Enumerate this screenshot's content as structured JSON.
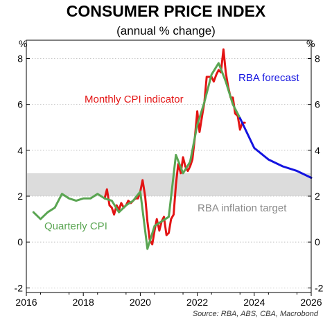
{
  "chart_data": {
    "type": "line",
    "title": "CONSUMER PRICE INDEX",
    "subtitle": "(annual % change)",
    "unit_left": "%",
    "unit_right": "%",
    "source": "Source: RBA, ABS, CBA, Macrobond",
    "xlim": [
      2016,
      2026
    ],
    "ylim": [
      -2.2,
      8.8
    ],
    "x_ticks": [
      2016,
      2018,
      2020,
      2022,
      2024,
      2026
    ],
    "y_ticks": [
      -2,
      0,
      2,
      4,
      6,
      8
    ],
    "grid": "horizontal-dotted",
    "target_band": {
      "label": "RBA inflation target",
      "low": 2,
      "high": 3,
      "color": "#dcdcdc",
      "label_color": "#8a8a8a"
    },
    "series": [
      {
        "name": "Monthly CPI indicator",
        "color": "#e31414",
        "x": [
          2018.75,
          2018.83,
          2018.92,
          2019.0,
          2019.08,
          2019.17,
          2019.25,
          2019.33,
          2019.42,
          2019.5,
          2019.58,
          2019.67,
          2019.75,
          2019.83,
          2019.92,
          2020.0,
          2020.08,
          2020.17,
          2020.25,
          2020.33,
          2020.42,
          2020.5,
          2020.58,
          2020.67,
          2020.75,
          2020.83,
          2020.92,
          2021.0,
          2021.08,
          2021.17,
          2021.25,
          2021.33,
          2021.42,
          2021.5,
          2021.58,
          2021.67,
          2021.75,
          2021.83,
          2021.92,
          2022.0,
          2022.08,
          2022.17,
          2022.25,
          2022.33,
          2022.42,
          2022.5,
          2022.58,
          2022.67,
          2022.75,
          2022.83,
          2022.92,
          2023.0,
          2023.08,
          2023.17,
          2023.25,
          2023.33,
          2023.42,
          2023.5,
          2023.58,
          2023.67
        ],
        "values": [
          1.9,
          2.3,
          1.6,
          1.5,
          1.2,
          1.6,
          1.4,
          1.7,
          1.5,
          1.6,
          1.8,
          1.7,
          1.8,
          1.9,
          1.9,
          2.2,
          2.7,
          2.0,
          0.9,
          0.1,
          -0.1,
          0.5,
          1.0,
          0.5,
          0.9,
          1.1,
          0.3,
          0.4,
          1.0,
          1.2,
          2.5,
          3.4,
          3.0,
          3.7,
          3.3,
          3.1,
          3.3,
          3.6,
          4.6,
          5.7,
          4.8,
          5.5,
          6.1,
          7.2,
          7.2,
          7.2,
          7.0,
          7.3,
          7.5,
          7.4,
          8.4,
          7.4,
          6.8,
          6.3,
          6.3,
          5.6,
          5.5,
          4.9,
          5.2,
          5.2
        ]
      },
      {
        "name": "Quarterly CPI",
        "color": "#5aa552",
        "x": [
          2016.25,
          2016.5,
          2016.75,
          2017.0,
          2017.25,
          2017.5,
          2017.75,
          2018.0,
          2018.25,
          2018.5,
          2018.75,
          2019.0,
          2019.25,
          2019.5,
          2019.75,
          2020.0,
          2020.25,
          2020.5,
          2020.75,
          2021.0,
          2021.25,
          2021.5,
          2021.75,
          2022.0,
          2022.25,
          2022.5,
          2022.75,
          2023.0,
          2023.25,
          2023.5
        ],
        "values": [
          1.3,
          1.0,
          1.3,
          1.5,
          2.1,
          1.9,
          1.8,
          1.9,
          1.9,
          2.1,
          1.9,
          1.8,
          1.3,
          1.6,
          1.8,
          2.2,
          -0.3,
          0.7,
          0.9,
          1.1,
          3.8,
          3.0,
          3.5,
          5.1,
          6.1,
          7.3,
          7.8,
          7.0,
          6.0,
          5.4
        ]
      },
      {
        "name": "RBA forecast",
        "color": "#1414e0",
        "x": [
          2023.5,
          2024.0,
          2024.5,
          2025.0,
          2025.5,
          2026.0
        ],
        "values": [
          5.4,
          4.1,
          3.6,
          3.3,
          3.1,
          2.8
        ]
      }
    ]
  }
}
